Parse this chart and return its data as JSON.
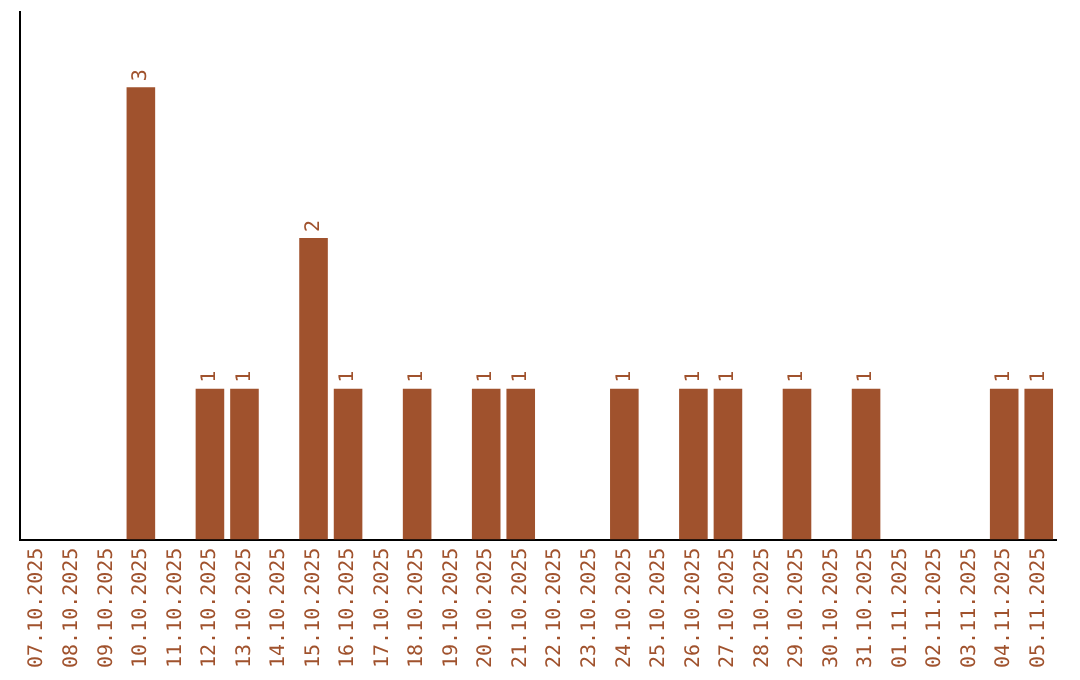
{
  "chart_data": {
    "type": "bar",
    "categories": [
      "07.10.2025",
      "08.10.2025",
      "09.10.2025",
      "10.10.2025",
      "11.10.2025",
      "12.10.2025",
      "13.10.2025",
      "14.10.2025",
      "15.10.2025",
      "16.10.2025",
      "17.10.2025",
      "18.10.2025",
      "19.10.2025",
      "20.10.2025",
      "21.10.2025",
      "22.10.2025",
      "23.10.2025",
      "24.10.2025",
      "25.10.2025",
      "26.10.2025",
      "27.10.2025",
      "28.10.2025",
      "29.10.2025",
      "30.10.2025",
      "31.10.2025",
      "01.11.2025",
      "02.11.2025",
      "03.11.2025",
      "04.11.2025",
      "05.11.2025"
    ],
    "values": [
      0,
      0,
      0,
      3,
      0,
      1,
      1,
      0,
      2,
      1,
      0,
      1,
      0,
      1,
      1,
      0,
      0,
      1,
      0,
      1,
      1,
      0,
      1,
      0,
      1,
      0,
      0,
      0,
      1,
      1
    ],
    "value_labels": [
      null,
      null,
      null,
      "3",
      null,
      "1",
      "1",
      null,
      "2",
      "1",
      null,
      "1",
      null,
      "1",
      "1",
      null,
      null,
      "1",
      null,
      "1",
      "1",
      null,
      "1",
      null,
      "1",
      null,
      null,
      null,
      "1",
      "1"
    ],
    "color": "#a0522d",
    "tick_labels": "x",
    "grid": false,
    "legend": false
  }
}
